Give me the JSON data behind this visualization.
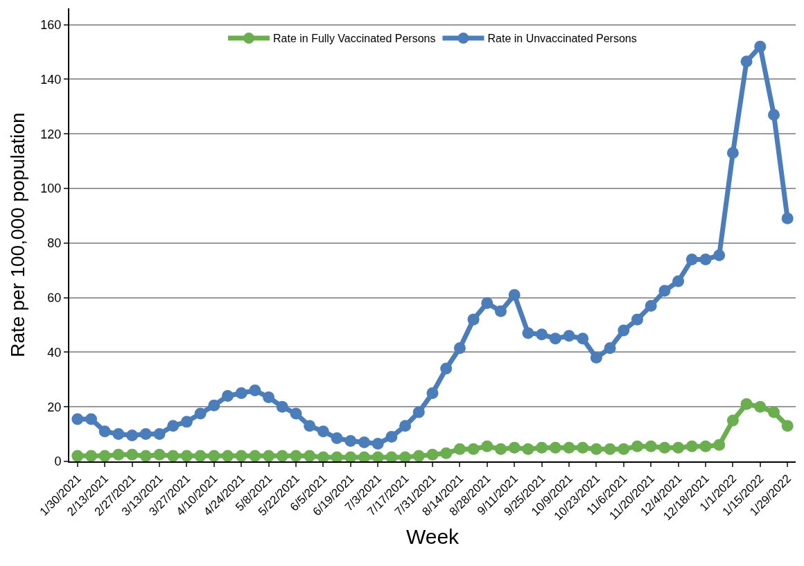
{
  "chart_data": {
    "type": "line",
    "xlabel": "Week",
    "ylabel": "Rate per 100,000 population",
    "categories": [
      "1/30/2021",
      null,
      "2/13/2021",
      null,
      "2/27/2021",
      null,
      "3/13/2021",
      null,
      "3/27/2021",
      null,
      "4/10/2021",
      null,
      "4/24/2021",
      null,
      "5/8/2021",
      null,
      "5/22/2021",
      null,
      "6/5/2021",
      null,
      "6/19/2021",
      null,
      "7/3/2021",
      null,
      "7/17/2021",
      null,
      "7/31/2021",
      null,
      "8/14/2021",
      null,
      "8/28/2021",
      null,
      "9/11/2021",
      null,
      "9/25/2021",
      null,
      "10/9/2021",
      null,
      "10/23/2021",
      null,
      "11/6/2021",
      null,
      "11/20/2021",
      null,
      "12/4/2021",
      null,
      "12/18/2021",
      null,
      "1/1/2022",
      null,
      "1/15/2022",
      null,
      "1/29/2022"
    ],
    "series": [
      {
        "name": "Rate in Fully Vaccinated Persons",
        "color": "#6aae50",
        "values": [
          2,
          2,
          2,
          2.5,
          2.5,
          2,
          2.5,
          2,
          2,
          2,
          2,
          2,
          2,
          2,
          2,
          2,
          2,
          2,
          1.5,
          1.5,
          1.5,
          1.5,
          1.5,
          1.5,
          1.5,
          2,
          2.5,
          3,
          4.5,
          4.5,
          5.5,
          4.5,
          5,
          4.5,
          5,
          5,
          5,
          5,
          4.5,
          4.5,
          4.5,
          5.5,
          5.5,
          5,
          5,
          5.5,
          5.5,
          6,
          15,
          21,
          20,
          18,
          13
        ]
      },
      {
        "name": "Rate in Unvaccinated Persons",
        "color": "#4a7dba",
        "values": [
          15.5,
          15.5,
          11,
          10,
          9.5,
          10,
          10,
          13,
          14.5,
          17.5,
          20.5,
          24,
          25,
          26,
          23.5,
          20,
          17.5,
          13,
          11,
          8.5,
          7.5,
          7,
          6.5,
          9,
          13,
          18,
          25,
          34,
          41.5,
          52,
          58,
          55,
          61,
          47,
          46.5,
          45,
          46,
          45,
          38,
          41.5,
          48,
          52,
          57,
          62.5,
          66,
          74,
          74,
          75.5,
          113,
          146.5,
          152,
          127,
          89
        ]
      }
    ],
    "ylim": [
      0,
      166
    ],
    "yticks": [
      0,
      20,
      40,
      60,
      80,
      100,
      120,
      140,
      160
    ],
    "grid": "y",
    "legend": "top",
    "marker": "circle",
    "line_style": "solid"
  }
}
